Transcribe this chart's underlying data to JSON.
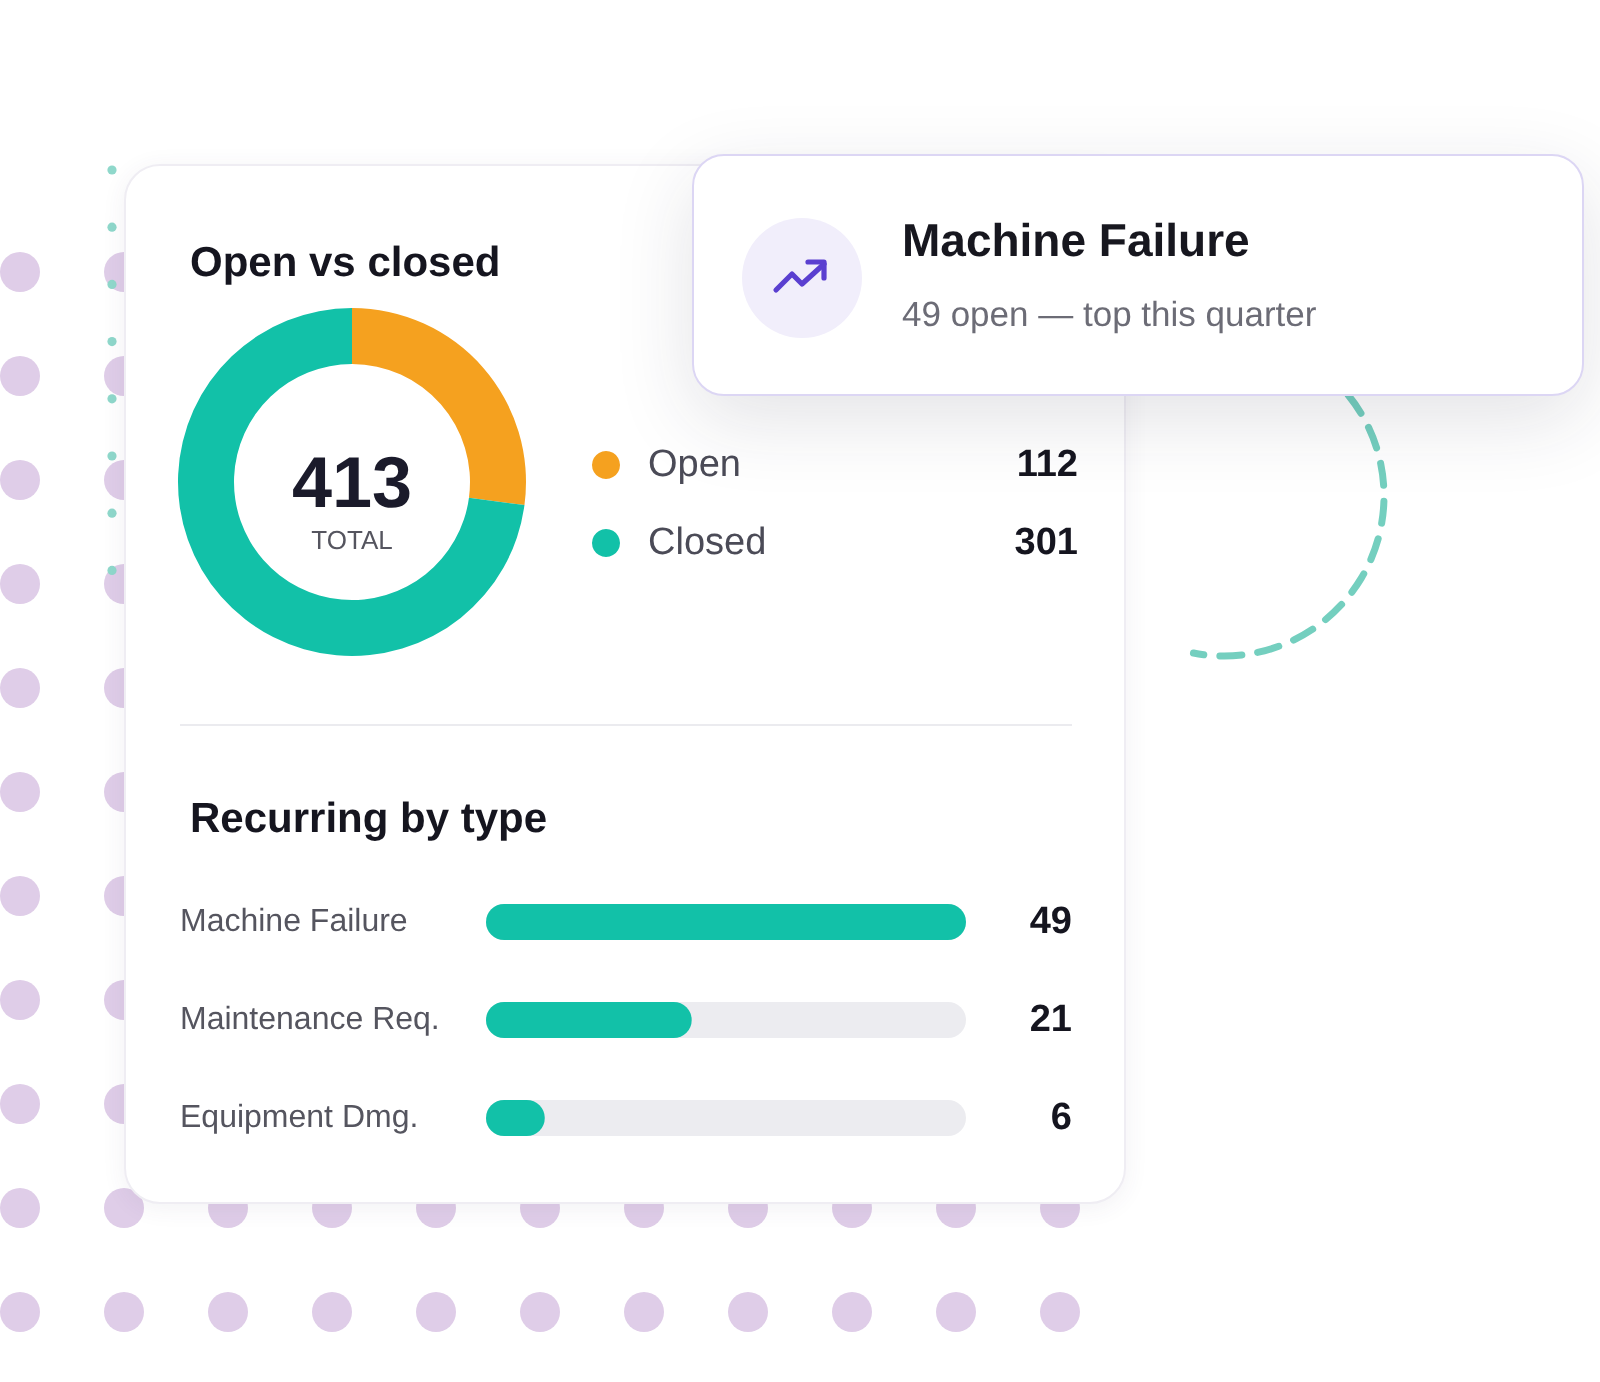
{
  "chart_data": [
    {
      "type": "donut",
      "title": "Open vs closed",
      "categories": [
        "Open",
        "Closed"
      ],
      "values": [
        112,
        301
      ],
      "colors": [
        "#f5a11f",
        "#12c1a8"
      ],
      "legend": "right",
      "data_labels": true,
      "annotations": [
        "413",
        "TOTAL"
      ]
    },
    {
      "type": "bar",
      "title": "Recurring by type",
      "orientation": "horizontal",
      "categories": [
        "Machine Failure",
        "Maintenance Req.",
        "Equipment Dmg."
      ],
      "values": [
        49,
        21,
        6
      ],
      "color": "#12c1a8",
      "data_labels": true
    },
    {
      "type": "other",
      "title": "Machine Failure",
      "annotations": [
        "49 open — top this quarter"
      ]
    }
  ]
}
